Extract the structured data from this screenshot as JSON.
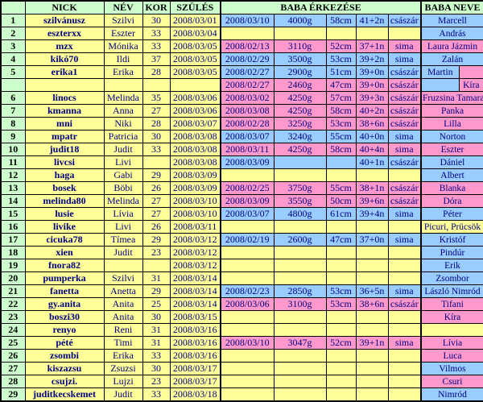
{
  "colors": {
    "header_bg": "#ccffcc",
    "row_bg": "#ffff99",
    "boy_bg": "#99ccff",
    "girl_bg": "#ff99cc",
    "text": "#000080",
    "border": "#000000"
  },
  "header": {
    "num": "",
    "nick": "NICK",
    "nev": "NÉV",
    "kor": "KOR",
    "szules": "SZÜLÉS",
    "baba_erkezese": "BABA ÉRKEZÉSE",
    "baba_neve": "BABA NEVE"
  },
  "rows": [
    {
      "num": "1",
      "nick": "szilvánusz",
      "nev": "Szilvi",
      "kor": "30",
      "szules": "2008/03/01",
      "arrival": {
        "color": "blue",
        "date": "2008/03/10",
        "weight": "4000g",
        "length": "58cm",
        "week": "41+2n",
        "mode": "császár"
      },
      "baby": {
        "color": "blue",
        "name": "Marcell"
      }
    },
    {
      "num": "2",
      "nick": "eszterxx",
      "nev": "Eszter",
      "kor": "33",
      "szules": "2008/03/04",
      "arrival": {
        "color": "yellow",
        "date": "",
        "weight": "",
        "length": "",
        "week": "",
        "mode": ""
      },
      "baby": {
        "color": "blue",
        "name": "András"
      }
    },
    {
      "num": "3",
      "nick": "mzx",
      "nev": "Mónika",
      "kor": "33",
      "szules": "2008/03/05",
      "arrival": {
        "color": "pink",
        "date": "2008/02/13",
        "weight": "3110g",
        "length": "52cm",
        "week": "37+1n",
        "mode": "sima"
      },
      "baby": {
        "color": "pink",
        "name": "Laura Jázmin"
      }
    },
    {
      "num": "4",
      "nick": "kikó70",
      "nev": "Ildi",
      "kor": "37",
      "szules": "2008/03/05",
      "arrival": {
        "color": "blue",
        "date": "2008/02/29",
        "weight": "3500g",
        "length": "53cm",
        "week": "39+2n",
        "mode": "sima"
      },
      "baby": {
        "color": "blue",
        "name": "Zalán"
      }
    },
    {
      "num": "5",
      "nick": "erika1",
      "nev": "Erika",
      "kor": "28",
      "szules": "2008/03/05",
      "arrival": {
        "color": "blue",
        "date": "2008/02/27",
        "weight": "2900g",
        "length": "51cm",
        "week": "39+0n",
        "mode": "császár"
      },
      "baby": {
        "split": [
          {
            "color": "blue",
            "name": "Martin"
          },
          {
            "color": "pink",
            "name": ""
          }
        ]
      }
    },
    {
      "num": "",
      "nick": "",
      "nev": "",
      "kor": "",
      "szules": "",
      "arrival": {
        "color": "pink",
        "date": "2008/02/27",
        "weight": "2460g",
        "length": "47cm",
        "week": "39+0n",
        "mode": "császár"
      },
      "baby": {
        "split": [
          {
            "color": "blue",
            "name": ""
          },
          {
            "color": "pink",
            "name": "Kíra"
          }
        ]
      }
    },
    {
      "num": "6",
      "nick": "linocs",
      "nev": "Melinda",
      "kor": "35",
      "szules": "2008/03/06",
      "arrival": {
        "color": "pink",
        "date": "2008/03/02",
        "weight": "4250g",
        "length": "57cm",
        "week": "39+3n",
        "mode": "császár"
      },
      "baby": {
        "color": "pink",
        "name": "Fruzsina Tamara"
      }
    },
    {
      "num": "7",
      "nick": "kmanna",
      "nev": "Anna",
      "kor": "27",
      "szules": "2008/03/06",
      "arrival": {
        "color": "pink",
        "date": "2008/03/08",
        "weight": "4250g",
        "length": "58cm",
        "week": "40+2n",
        "mode": "császár"
      },
      "baby": {
        "color": "pink",
        "name": "Panka"
      }
    },
    {
      "num": "8",
      "nick": "mni",
      "nev": "Niki",
      "kor": "28",
      "szules": "2008/03/07",
      "arrival": {
        "color": "pink",
        "date": "2008/02/28",
        "weight": "3250g",
        "length": "53cm",
        "week": "38+6n",
        "mode": "császár"
      },
      "baby": {
        "color": "pink",
        "name": "Lilla"
      }
    },
    {
      "num": "9",
      "nick": "mpatr",
      "nev": "Patricia",
      "kor": "30",
      "szules": "2008/03/08",
      "arrival": {
        "color": "blue",
        "date": "2008/03/07",
        "weight": "3240g",
        "length": "55cm",
        "week": "40+0n",
        "mode": "sima"
      },
      "baby": {
        "color": "blue",
        "name": "Norton"
      }
    },
    {
      "num": "10",
      "nick": "judit18",
      "nev": "Judit",
      "kor": "33",
      "szules": "2008/03/08",
      "arrival": {
        "color": "pink",
        "date": "2008/03/11",
        "weight": "4250g",
        "length": "58cm",
        "week": "40+4n",
        "mode": "sima"
      },
      "baby": {
        "color": "pink",
        "name": "Eszter"
      }
    },
    {
      "num": "11",
      "nick": "livcsi",
      "nev": "Livi",
      "kor": "",
      "szules": "2008/03/08",
      "arrival": {
        "color": "blue",
        "date": "2008/03/09",
        "weight": "",
        "length": "",
        "week": "40+1n",
        "mode": "császár"
      },
      "baby": {
        "color": "blue",
        "name": "Dániel"
      }
    },
    {
      "num": "12",
      "nick": "haga",
      "nev": "Gabi",
      "kor": "29",
      "szules": "2008/03/09",
      "arrival": {
        "color": "yellow",
        "date": "",
        "weight": "",
        "length": "",
        "week": "",
        "mode": ""
      },
      "baby": {
        "color": "blue",
        "name": "Albert"
      }
    },
    {
      "num": "13",
      "nick": "bosek",
      "nev": "Böbi",
      "kor": "26",
      "szules": "2008/03/09",
      "arrival": {
        "color": "pink",
        "date": "2008/02/25",
        "weight": "3750g",
        "length": "55cm",
        "week": "38+1n",
        "mode": "császár"
      },
      "baby": {
        "color": "pink",
        "name": "Blanka"
      }
    },
    {
      "num": "14",
      "nick": "melinda80",
      "nev": "Melinda",
      "kor": "27",
      "szules": "2008/03/10",
      "arrival": {
        "color": "pink",
        "date": "2008/03/09",
        "weight": "3550g",
        "length": "50cm",
        "week": "39+6n",
        "mode": "császár"
      },
      "baby": {
        "color": "pink",
        "name": "Dóra"
      }
    },
    {
      "num": "15",
      "nick": "lusie",
      "nev": "Lívia",
      "kor": "27",
      "szules": "2008/03/10",
      "arrival": {
        "color": "blue",
        "date": "2008/03/07",
        "weight": "4800g",
        "length": "61cm",
        "week": "39+4n",
        "mode": "sima"
      },
      "baby": {
        "color": "blue",
        "name": "Péter"
      }
    },
    {
      "num": "16",
      "nick": "livike",
      "nev": "Livi",
      "kor": "26",
      "szules": "2008/03/11",
      "arrival": {
        "color": "yellow",
        "date": "",
        "weight": "",
        "length": "",
        "week": "",
        "mode": ""
      },
      "baby": {
        "color": "yellow",
        "name": "Picuri, Prücsök"
      }
    },
    {
      "num": "17",
      "nick": "cicuka78",
      "nev": "Tímea",
      "kor": "29",
      "szules": "2008/03/12",
      "arrival": {
        "color": "blue",
        "date": "2008/02/19",
        "weight": "2600g",
        "length": "47cm",
        "week": "37+0n",
        "mode": "sima"
      },
      "baby": {
        "color": "blue",
        "name": "Kristóf"
      }
    },
    {
      "num": "18",
      "nick": "xien",
      "nev": "Judit",
      "kor": "23",
      "szules": "2008/03/12",
      "arrival": {
        "color": "yellow",
        "date": "",
        "weight": "",
        "length": "",
        "week": "",
        "mode": ""
      },
      "baby": {
        "color": "blue",
        "name": "Pindúr"
      }
    },
    {
      "num": "19",
      "nick": "fnora82",
      "nev": "",
      "kor": "",
      "szules": "2008/03/12",
      "arrival": {
        "color": "yellow",
        "date": "",
        "weight": "",
        "length": "",
        "week": "",
        "mode": ""
      },
      "baby": {
        "color": "blue",
        "name": "Erik"
      }
    },
    {
      "num": "20",
      "nick": "pumperka",
      "nev": "Szilvi",
      "kor": "31",
      "szules": "2008/03/14",
      "arrival": {
        "color": "yellow",
        "date": "",
        "weight": "",
        "length": "",
        "week": "",
        "mode": ""
      },
      "baby": {
        "color": "blue",
        "name": "Zsombor"
      }
    },
    {
      "num": "21",
      "nick": "fanetta",
      "nev": "Anetta",
      "kor": "29",
      "szules": "2008/03/14",
      "arrival": {
        "color": "blue",
        "date": "2008/02/23",
        "weight": "2850g",
        "length": "53cm",
        "week": "36+5n",
        "mode": "sima"
      },
      "baby": {
        "color": "blue",
        "name": "László Nimród"
      }
    },
    {
      "num": "22",
      "nick": "gy.anita",
      "nev": "Anita",
      "kor": "25",
      "szules": "2008/03/14",
      "arrival": {
        "color": "pink",
        "date": "2008/03/06",
        "weight": "3100g",
        "length": "53cm",
        "week": "38+6n",
        "mode": "császár"
      },
      "baby": {
        "color": "pink",
        "name": "Tifani"
      }
    },
    {
      "num": "23",
      "nick": "boszi30",
      "nev": "Anita",
      "kor": "30",
      "szules": "2008/03/15",
      "arrival": {
        "color": "yellow",
        "date": "",
        "weight": "",
        "length": "",
        "week": "",
        "mode": ""
      },
      "baby": {
        "color": "pink",
        "name": "Kíra"
      }
    },
    {
      "num": "24",
      "nick": "renyo",
      "nev": "Reni",
      "kor": "31",
      "szules": "2008/03/16",
      "arrival": {
        "color": "yellow",
        "date": "",
        "weight": "",
        "length": "",
        "week": "",
        "mode": ""
      },
      "baby": {
        "color": "yellow",
        "name": ""
      }
    },
    {
      "num": "25",
      "nick": "pété",
      "nev": "Timi",
      "kor": "31",
      "szules": "2008/03/16",
      "arrival": {
        "color": "pink",
        "date": "2008/03/10",
        "weight": "3047g",
        "length": "52cm",
        "week": "39+1n",
        "mode": "sima"
      },
      "baby": {
        "color": "pink",
        "name": "Lívia"
      }
    },
    {
      "num": "26",
      "nick": "zsombi",
      "nev": "Erika",
      "kor": "33",
      "szules": "2008/03/16",
      "arrival": {
        "color": "yellow",
        "date": "",
        "weight": "",
        "length": "",
        "week": "",
        "mode": ""
      },
      "baby": {
        "color": "pink",
        "name": "Luca"
      }
    },
    {
      "num": "27",
      "nick": "kiszazsu",
      "nev": "Zsuzsi",
      "kor": "30",
      "szules": "2008/03/17",
      "arrival": {
        "color": "yellow",
        "date": "",
        "weight": "",
        "length": "",
        "week": "",
        "mode": ""
      },
      "baby": {
        "color": "blue",
        "name": "Vilmos"
      }
    },
    {
      "num": "28",
      "nick": "csujzi.",
      "nev": "Lujzi",
      "kor": "23",
      "szules": "2008/03/17",
      "arrival": {
        "color": "yellow",
        "date": "",
        "weight": "",
        "length": "",
        "week": "",
        "mode": ""
      },
      "baby": {
        "color": "pink",
        "name": "Csuri"
      }
    },
    {
      "num": "29",
      "nick": "juditkecskemet",
      "nev": "Judit",
      "kor": "33",
      "szules": "2008/03/18",
      "arrival": {
        "color": "yellow",
        "date": "",
        "weight": "",
        "length": "",
        "week": "",
        "mode": ""
      },
      "baby": {
        "color": "blue",
        "name": "Nimród"
      }
    }
  ]
}
